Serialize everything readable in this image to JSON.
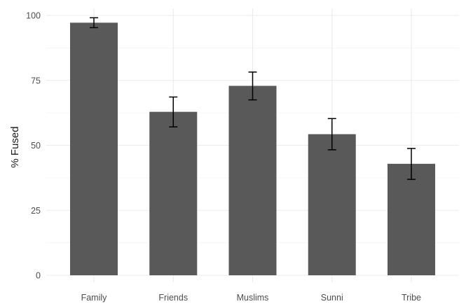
{
  "chart_data": {
    "type": "bar",
    "title": "",
    "xlabel": "",
    "ylabel": "% Fused",
    "categories": [
      "Family",
      "Friends",
      "Muslims",
      "Sunni",
      "Tribe"
    ],
    "values": [
      97.2,
      62.9,
      72.9,
      54.3,
      42.9
    ],
    "error_low": [
      95.3,
      57.1,
      67.5,
      48.3,
      36.9
    ],
    "error_high": [
      99.1,
      68.6,
      78.2,
      60.3,
      48.8
    ],
    "ylim": [
      0,
      100
    ],
    "yticks": [
      0,
      25,
      50,
      75,
      100
    ],
    "ytick_labels": [
      "0",
      "25",
      "50",
      "75",
      "100"
    ],
    "grid": true,
    "legend": "none",
    "colors": {
      "bar": "#595959",
      "error_bar": "#000000",
      "grid_major": "#ebebeb",
      "grid_minor": "#f4f4f4"
    }
  }
}
